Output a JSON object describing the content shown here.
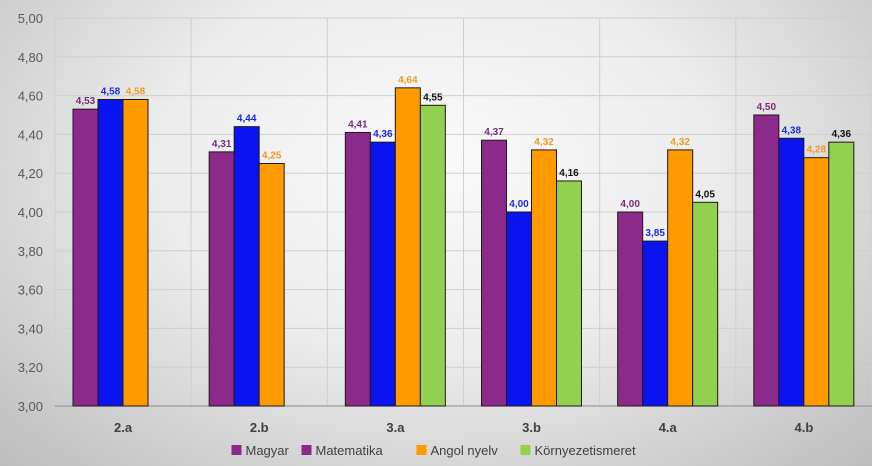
{
  "chart_data": {
    "type": "bar",
    "categories": [
      "2.a",
      "2.b",
      "3.a",
      "3.b",
      "4.a",
      "4.b"
    ],
    "ylim": [
      3.0,
      5.0
    ],
    "yticks": [
      "3,00",
      "3,20",
      "3,40",
      "3,60",
      "3,80",
      "4,00",
      "4,20",
      "4,40",
      "4,60",
      "4,80",
      "5,00"
    ],
    "grid": true,
    "legend_position": "bottom",
    "series": [
      {
        "name": "Magyar",
        "color": "#8B2A8A",
        "label_color": "#7B2A7A",
        "values": [
          4.53,
          4.31,
          4.41,
          4.37,
          4.0,
          4.5
        ],
        "labels": [
          "4,53",
          "4,31",
          "4,41",
          "4,37",
          "4,00",
          "4,50"
        ]
      },
      {
        "name": "Matematika",
        "color": "#0A14F0",
        "label_color": "#1A2AE0",
        "values": [
          4.58,
          4.44,
          4.36,
          4.0,
          3.85,
          4.38
        ],
        "labels": [
          "4,58",
          "4,44",
          "4,36",
          "4,00",
          "3,85",
          "4,38"
        ]
      },
      {
        "name": "Angol nyelv",
        "color": "#FF9A00",
        "label_color": "#F09A20",
        "values": [
          4.58,
          4.25,
          4.64,
          4.32,
          4.32,
          4.28
        ],
        "labels": [
          "4,58",
          "4,25",
          "4,64",
          "4,32",
          "4,32",
          "4,28"
        ]
      },
      {
        "name": "Környezetismeret",
        "color": "#92D050",
        "label_color": "#111111",
        "values": [
          null,
          null,
          4.55,
          4.16,
          4.05,
          4.36
        ],
        "labels": [
          "",
          "",
          "4,55",
          "4,16",
          "4,05",
          "4,36"
        ]
      }
    ],
    "legend_colors": [
      "#8B2A8A",
      "#8B2A8A",
      "#FF9A00",
      "#92D050"
    ]
  }
}
